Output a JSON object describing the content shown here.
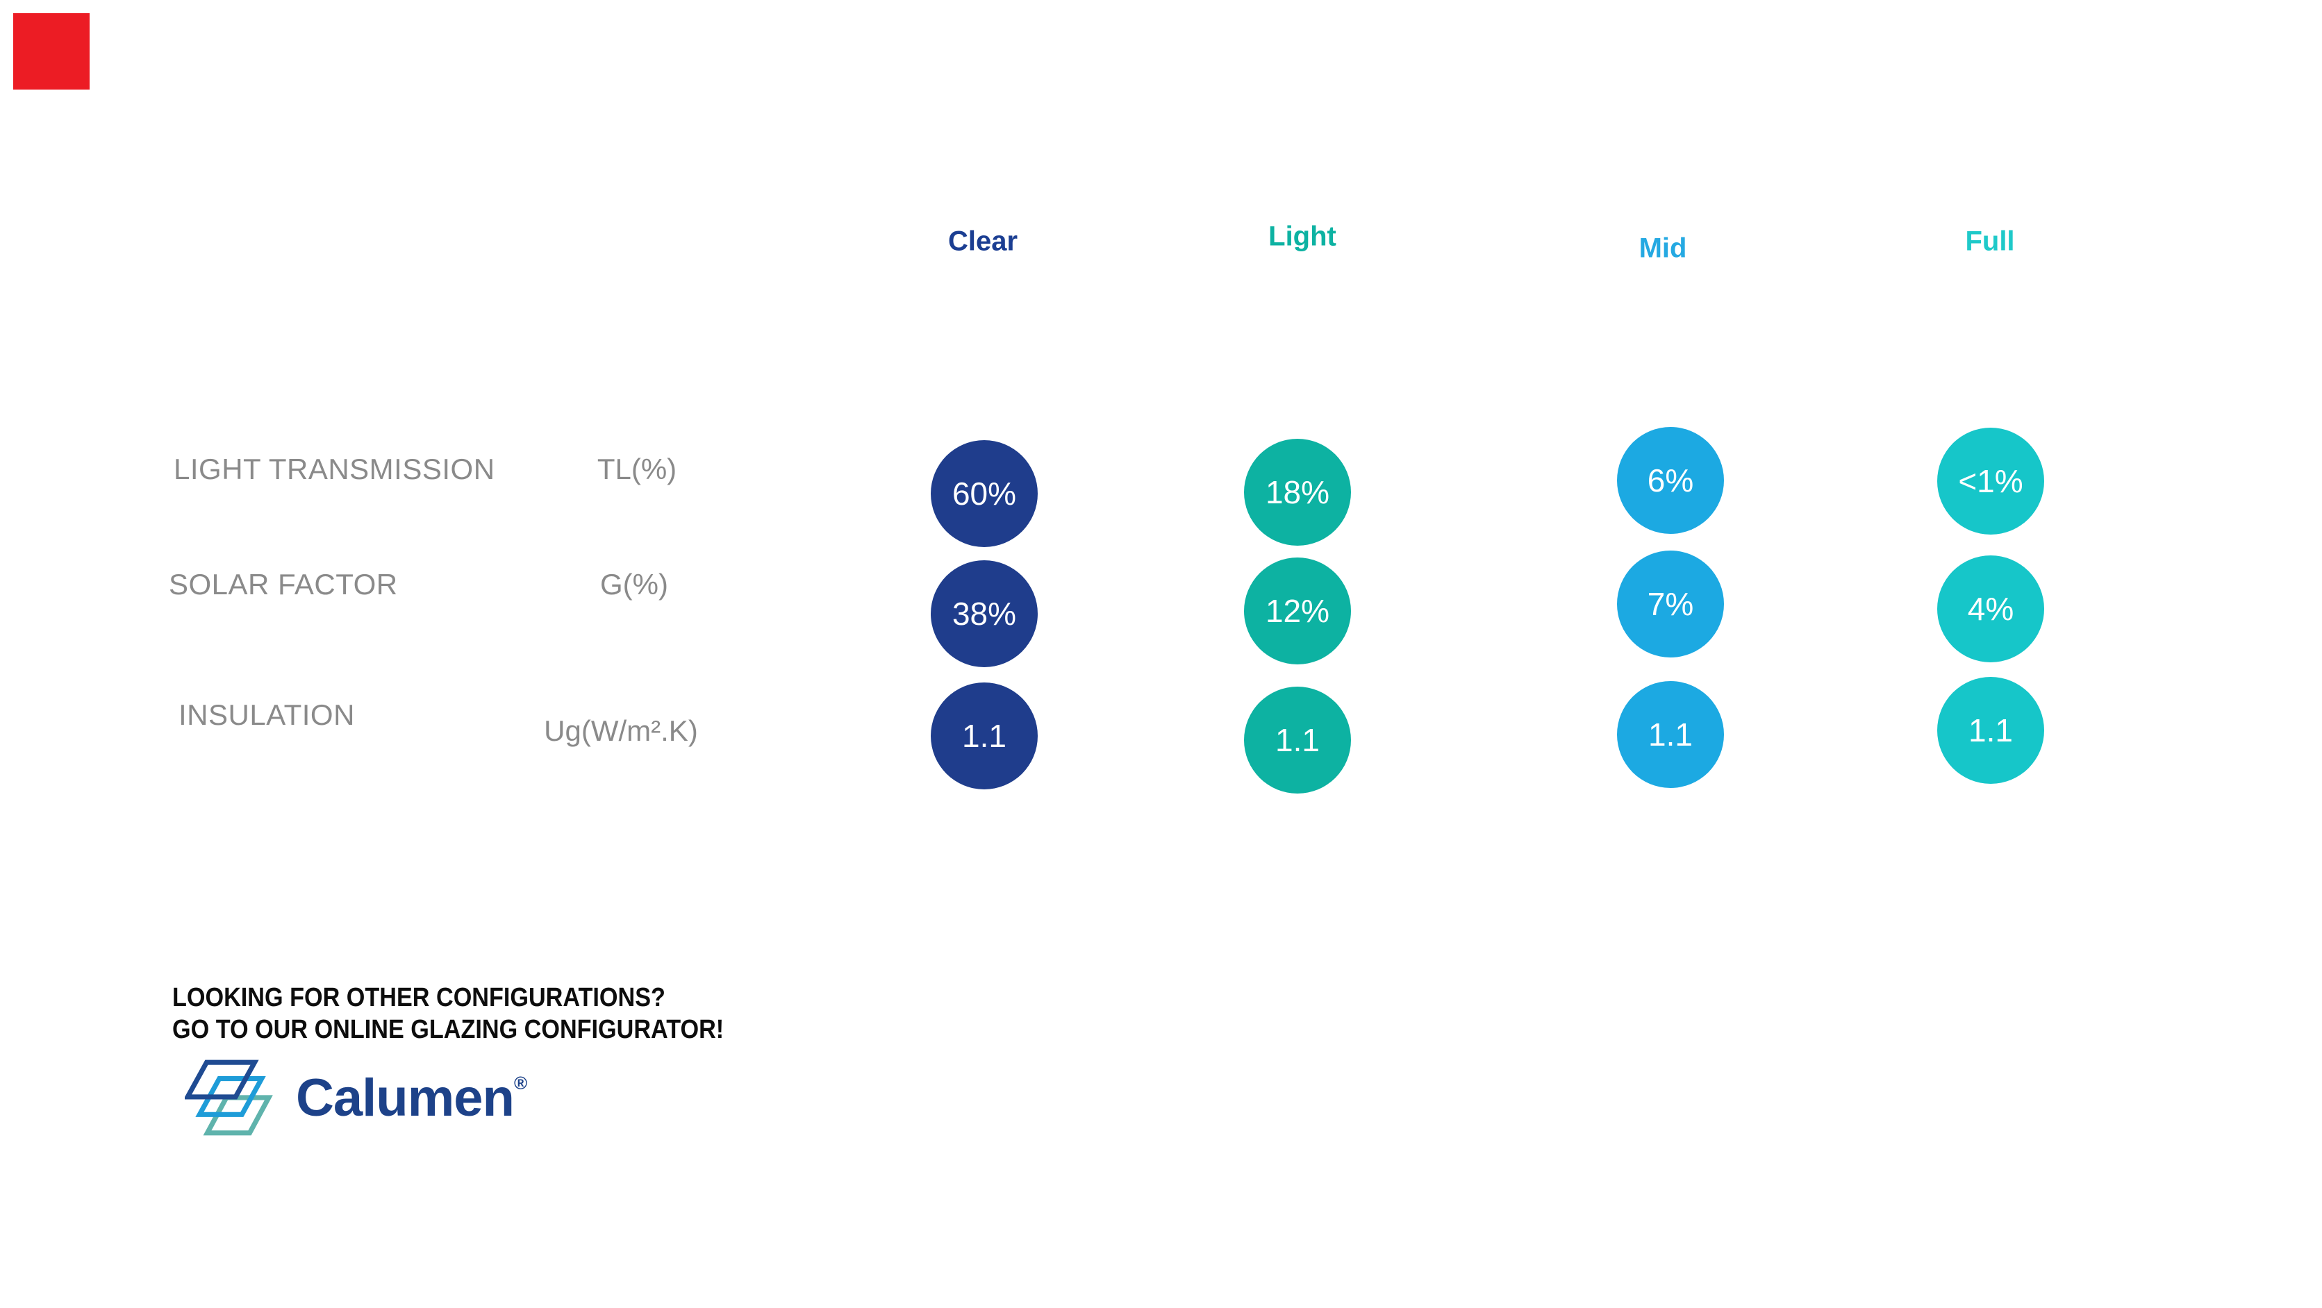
{
  "marker": {
    "color": "#ec1c24"
  },
  "columns": [
    {
      "label": "Clear",
      "text_color": "#1b3e92",
      "circle_color": "#1f3d8c"
    },
    {
      "label": "Light",
      "text_color": "#0db2a2",
      "circle_color": "#0db2a2"
    },
    {
      "label": "Mid",
      "text_color": "#25a9e2",
      "circle_color": "#1ca9e2"
    },
    {
      "label": "Full",
      "text_color": "#1fc9c9",
      "circle_color": "#16c6c9"
    }
  ],
  "rows": [
    {
      "label": "LIGHT TRANSMISSION",
      "unit": "TL(%)",
      "values": [
        "60%",
        "18%",
        "6%",
        "<1%"
      ]
    },
    {
      "label": "SOLAR FACTOR",
      "unit": "G(%)",
      "values": [
        "38%",
        "12%",
        "7%",
        "4%"
      ]
    },
    {
      "label": "INSULATION",
      "unit": "Ug(W/m².K)",
      "values": [
        "1.1",
        "1.1",
        "1.1",
        "1.1"
      ]
    }
  ],
  "footer": {
    "cta_line1": "LOOKING FOR OTHER CONFIGURATIONS?",
    "cta_line2": "GO TO OUR ONLINE GLAZING CONFIGURATOR!",
    "brand": "Calumen",
    "registered": "®",
    "brand_color": "#1d4289",
    "pane_colors": [
      "#1f4b92",
      "#1e9cd8",
      "#5fb3ac"
    ]
  },
  "chart_data": {
    "type": "table",
    "categories": [
      "Clear",
      "Light",
      "Mid",
      "Full"
    ],
    "rows": [
      {
        "label": "LIGHT TRANSMISSION",
        "unit": "TL(%)",
        "values": [
          "60%",
          "18%",
          "6%",
          "<1%"
        ]
      },
      {
        "label": "SOLAR FACTOR",
        "unit": "G(%)",
        "values": [
          "38%",
          "12%",
          "7%",
          "4%"
        ]
      },
      {
        "label": "INSULATION",
        "unit": "Ug(W/m².K)",
        "values": [
          1.1,
          1.1,
          1.1,
          1.1
        ]
      }
    ],
    "legend_position": "none",
    "grid": false
  }
}
